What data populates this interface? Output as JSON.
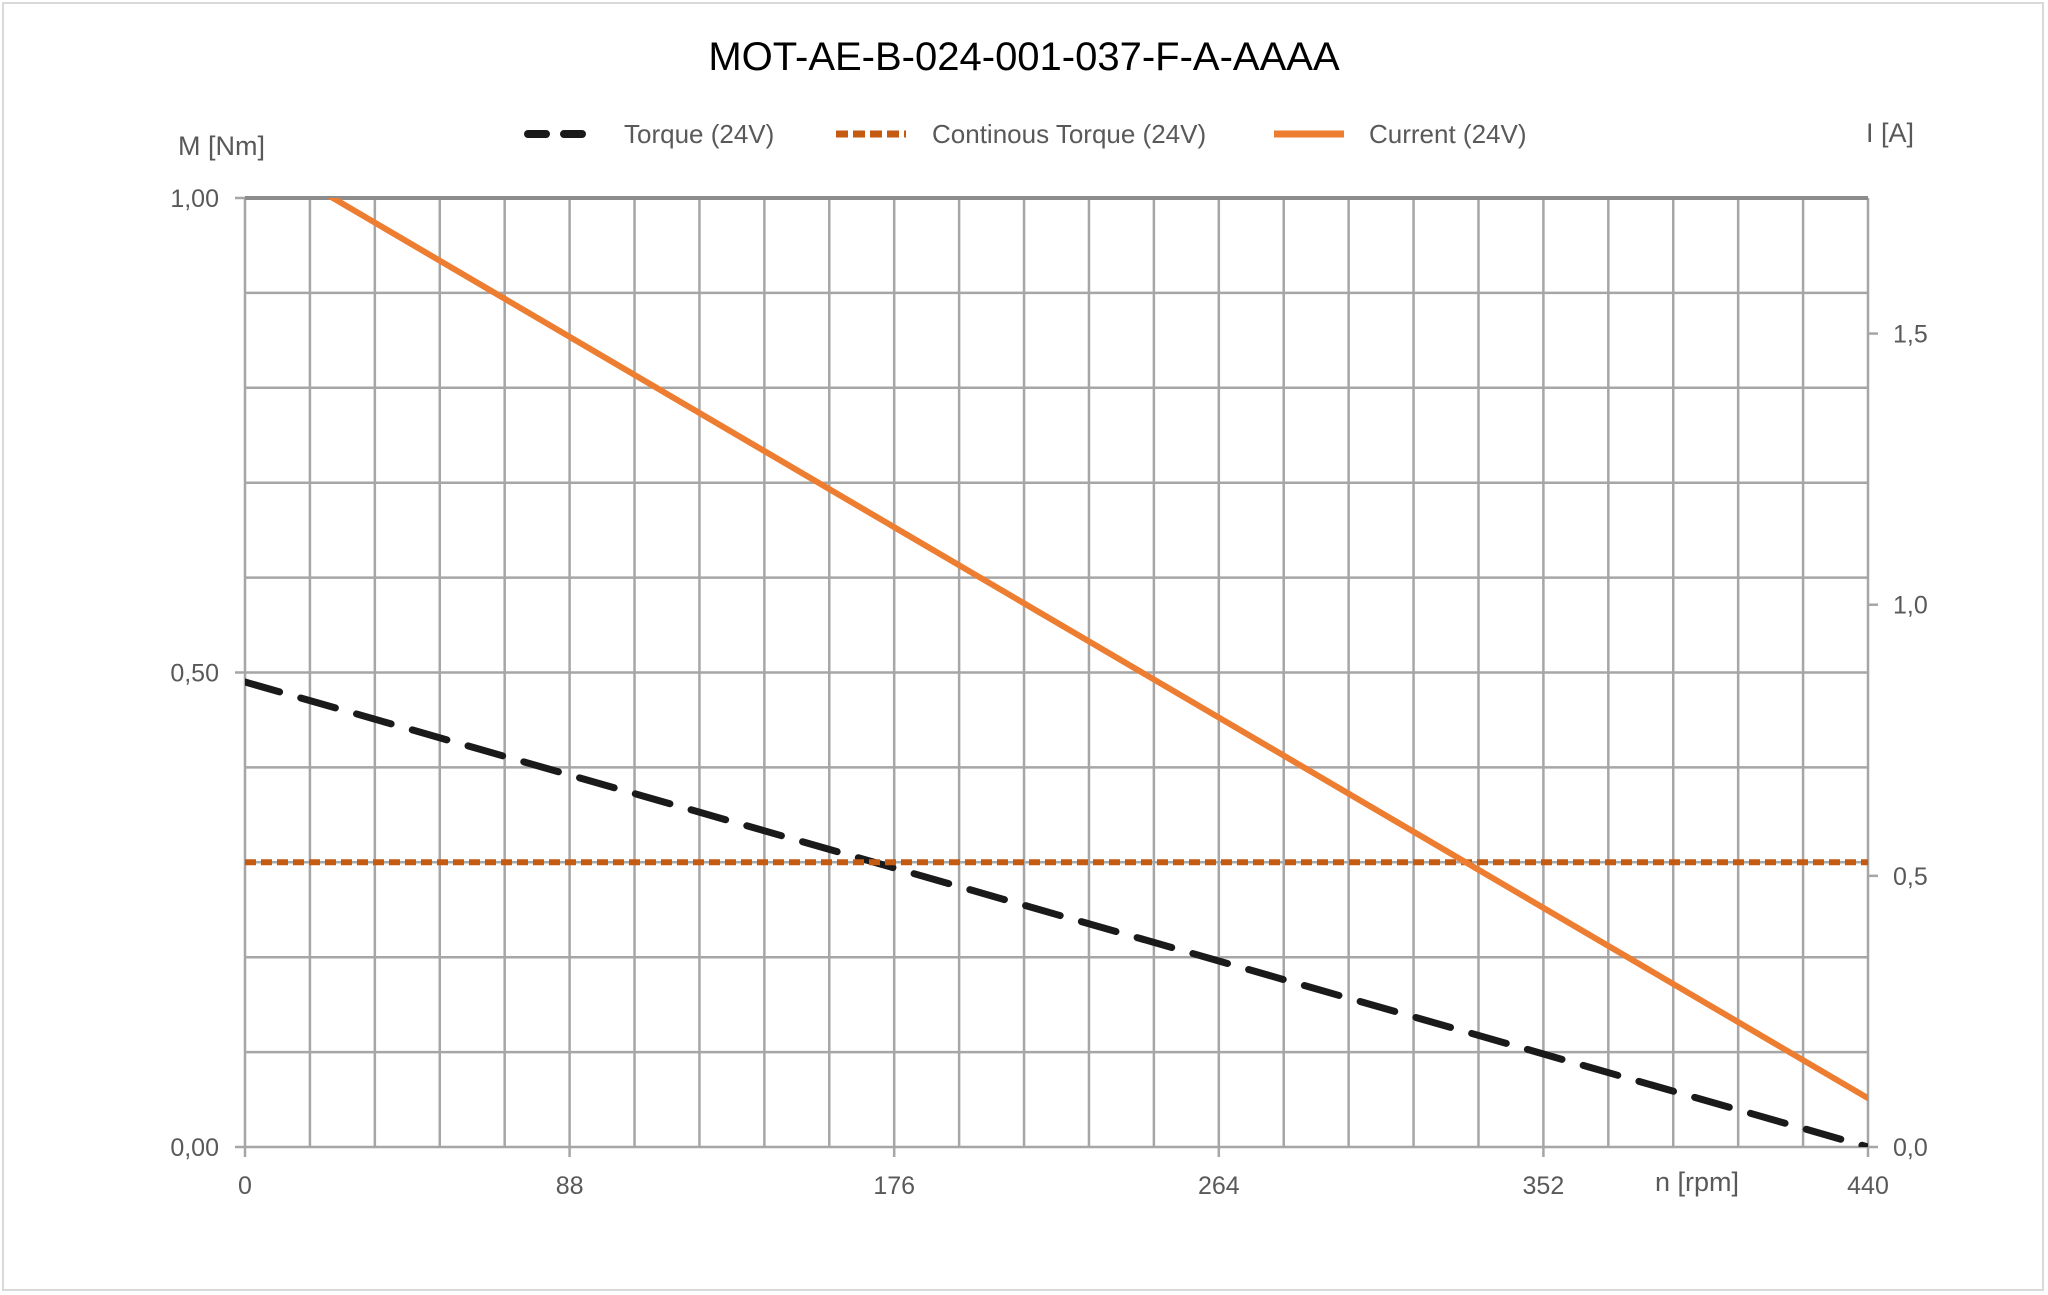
{
  "chart_data": {
    "type": "line",
    "title": "MOT-AE-B-024-001-037-F-A-AAAA",
    "xlabel": "n [rpm]",
    "ylabel": "M [Nm]",
    "y2label": "I [A]",
    "xlim": [
      0,
      440
    ],
    "ylim": [
      0,
      1.0
    ],
    "y2lim": [
      0,
      1.75
    ],
    "x_ticks": [
      "0",
      "88",
      "176",
      "264",
      "352",
      "440"
    ],
    "y_ticks": [
      "0,00",
      "0,50",
      "1,00"
    ],
    "y2_ticks": [
      "0,0",
      "0,5",
      "1,0",
      "1,5"
    ],
    "grid": true,
    "x_grid_step": 17.6,
    "y_grid_step": 0.1,
    "legend_position": "top",
    "series": [
      {
        "name": "Torque (24V)",
        "axis": "left",
        "style": "dashed",
        "color": "#1a1a1a",
        "x": [
          0,
          440
        ],
        "y": [
          0.49,
          0.0
        ]
      },
      {
        "name": "Continous Torque (24V)",
        "axis": "left",
        "style": "dotted",
        "color": "#c55a11",
        "x": [
          0,
          440
        ],
        "y": [
          0.3,
          0.3
        ]
      },
      {
        "name": "Current (24V)",
        "axis": "right",
        "style": "solid",
        "color": "#ed7d31",
        "x": [
          0,
          440
        ],
        "y": [
          1.845,
          0.09
        ]
      }
    ]
  }
}
